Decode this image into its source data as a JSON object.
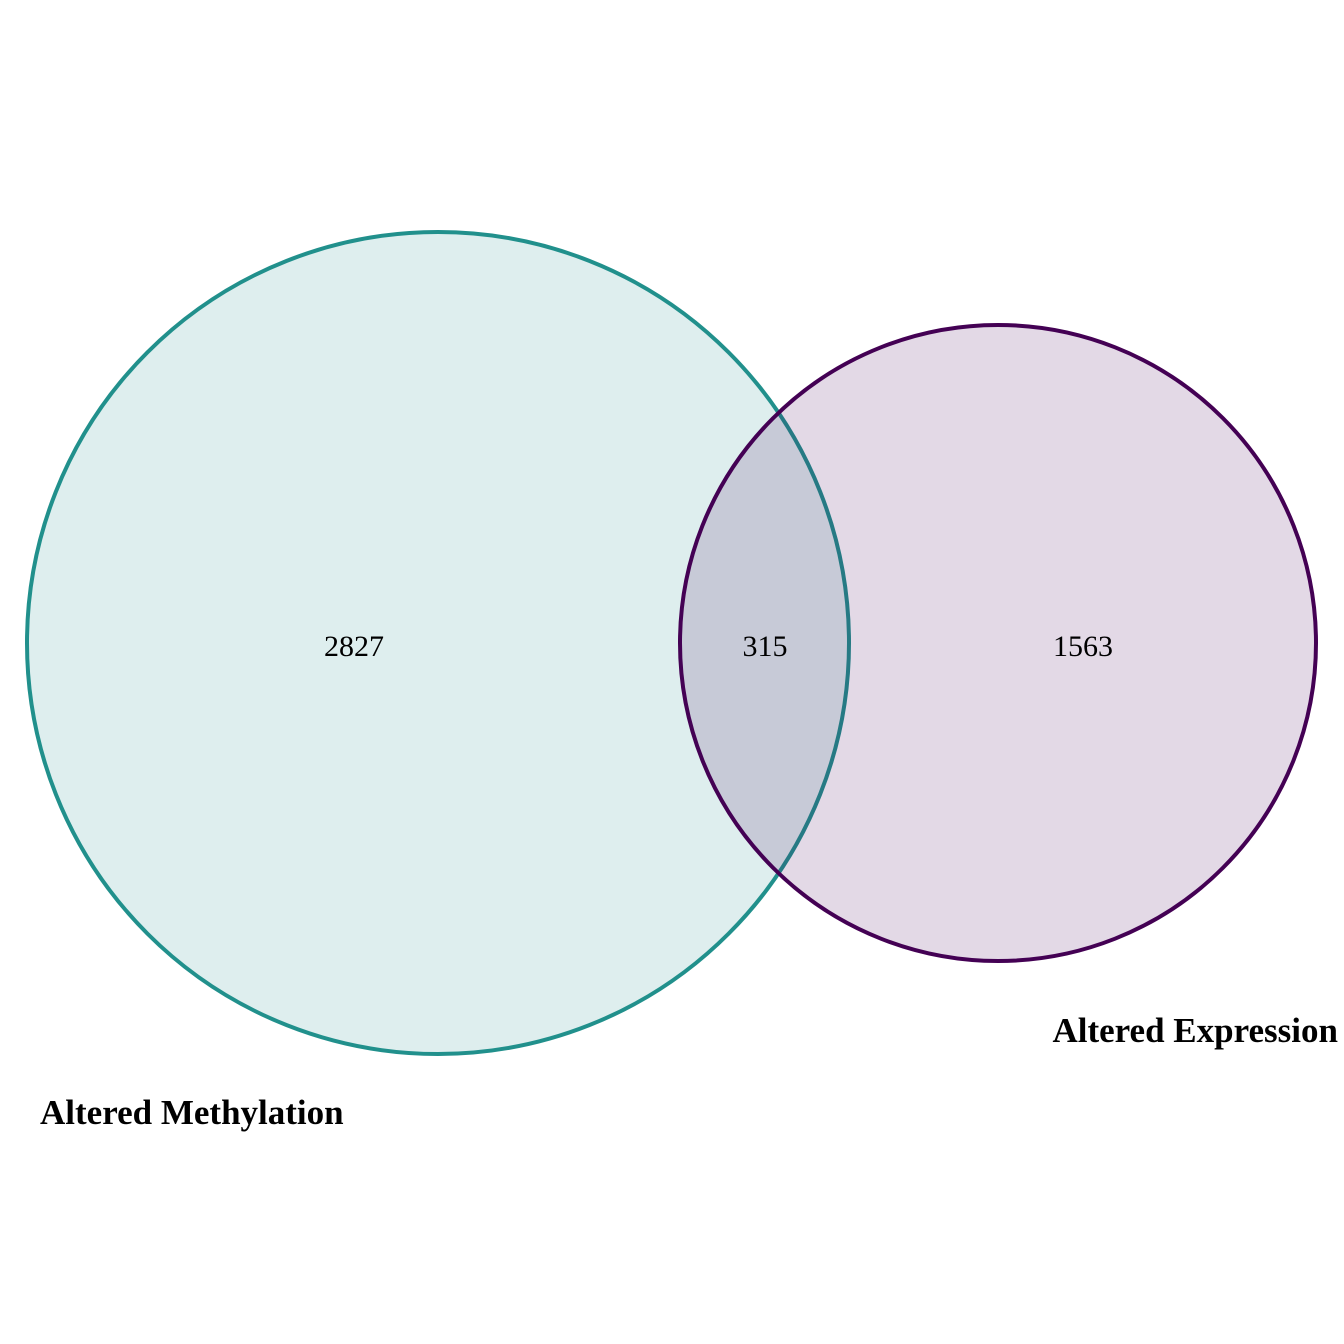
{
  "venn": {
    "sets": [
      {
        "id": "methylation",
        "label": "Altered Methylation",
        "only_count": "2827",
        "stroke": "#21908C",
        "fill": "#21908C"
      },
      {
        "id": "expression",
        "label": "Altered Expression",
        "only_count": "1563",
        "stroke": "#440154",
        "fill": "#440154"
      }
    ],
    "intersection_count": "315"
  }
}
